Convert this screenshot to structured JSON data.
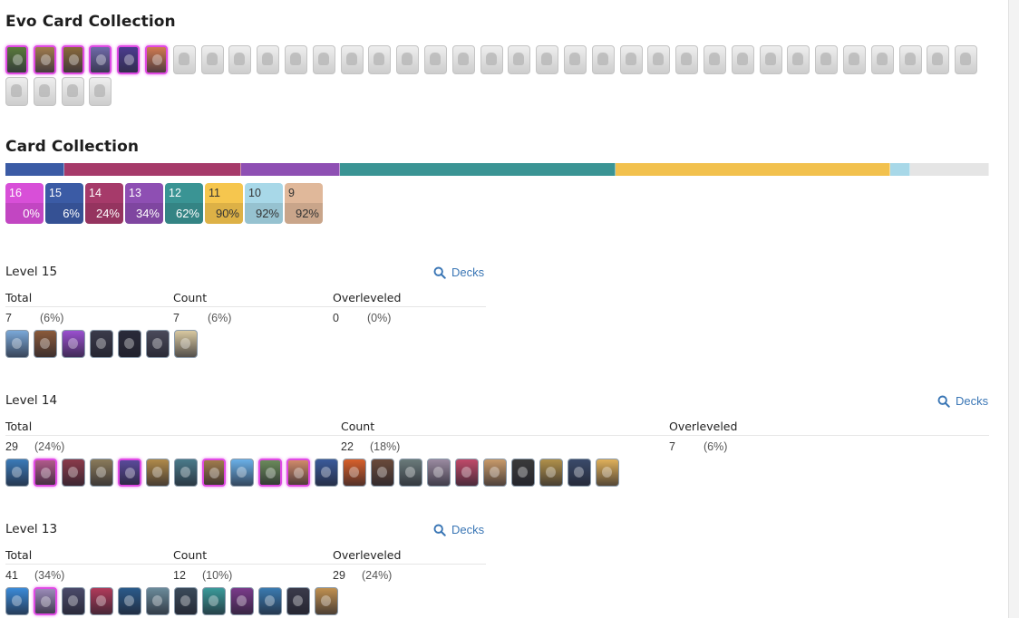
{
  "evo_section": {
    "title": "Evo Card Collection",
    "owned_cards": [
      {
        "icon": "evo-card-icon",
        "color": "#5a7a3a"
      },
      {
        "icon": "evo-card-icon",
        "color": "#a07b4c"
      },
      {
        "icon": "evo-card-icon",
        "color": "#8a6a3b"
      },
      {
        "icon": "evo-card-icon",
        "color": "#6f6aa8"
      },
      {
        "icon": "evo-card-icon",
        "color": "#4b3b8f"
      },
      {
        "icon": "evo-card-icon",
        "color": "#d07a50"
      }
    ],
    "locked_card_icon": "locked-card-icon",
    "locked_card_count": 33
  },
  "collection_section": {
    "title": "Card Collection",
    "segments": [
      {
        "color": "#3b5ba5",
        "share": 6
      },
      {
        "color": "#a63a6a",
        "share": 18
      },
      {
        "color": "#8e4fb3",
        "share": 10
      },
      {
        "color": "#3a9494",
        "share": 28
      },
      {
        "color": "#f2c14e",
        "share": 28
      },
      {
        "color": "#a8d8e8",
        "share": 2
      },
      {
        "color": "#e5e5e5",
        "share": 8
      }
    ],
    "badges": [
      {
        "level": "16",
        "pct": "0%",
        "color": "#d84fd8"
      },
      {
        "level": "15",
        "pct": "6%",
        "color": "#3b5ba5"
      },
      {
        "level": "14",
        "pct": "24%",
        "color": "#a63a6a"
      },
      {
        "level": "13",
        "pct": "34%",
        "color": "#8e4fb3"
      },
      {
        "level": "12",
        "pct": "62%",
        "color": "#3a9494"
      },
      {
        "level": "11",
        "pct": "90%",
        "color": "#f6c64e"
      },
      {
        "level": "10",
        "pct": "92%",
        "color": "#a8d8e8"
      },
      {
        "level": "9",
        "pct": "92%",
        "color": "#e0b89a"
      }
    ]
  },
  "levels": [
    {
      "title": "Level 15",
      "decks_label": "Decks",
      "headers": {
        "total": "Total",
        "count": "Count",
        "overleveled": "Overleveled"
      },
      "total": {
        "num": "7",
        "pct": "(6%)"
      },
      "count": {
        "num": "7",
        "pct": "(6%)"
      },
      "overleveled": {
        "num": "0",
        "pct": "(0%)"
      },
      "cards": [
        {
          "color": "#7aa8d8",
          "evo": false
        },
        {
          "color": "#8a5a3a",
          "evo": false
        },
        {
          "color": "#9a4fcf",
          "evo": false
        },
        {
          "color": "#3a3a4a",
          "evo": false
        },
        {
          "color": "#2a2a3a",
          "evo": false
        },
        {
          "color": "#4a4a5a",
          "evo": false
        },
        {
          "color": "#d9c9a0",
          "evo": false
        }
      ]
    },
    {
      "title": "Level 14",
      "decks_label": "Decks",
      "headers": {
        "total": "Total",
        "count": "Count",
        "overleveled": "Overleveled"
      },
      "total": {
        "num": "29",
        "pct": "(24%)"
      },
      "count": {
        "num": "22",
        "pct": "(18%)"
      },
      "overleveled": {
        "num": "7",
        "pct": "(6%)"
      },
      "cards": [
        {
          "color": "#3a7ab8",
          "evo": false
        },
        {
          "color": "#b05a8a",
          "evo": true
        },
        {
          "color": "#8a3a4a",
          "evo": false
        },
        {
          "color": "#8a7a5a",
          "evo": false
        },
        {
          "color": "#5a4a9a",
          "evo": true
        },
        {
          "color": "#b08a4a",
          "evo": false
        },
        {
          "color": "#4a7a8a",
          "evo": false
        },
        {
          "color": "#a07b4c",
          "evo": true
        },
        {
          "color": "#6ab0e8",
          "evo": false
        },
        {
          "color": "#6a8a5a",
          "evo": true
        },
        {
          "color": "#d08a6a",
          "evo": true
        },
        {
          "color": "#3a5a9a",
          "evo": false
        },
        {
          "color": "#d8602a",
          "evo": false
        },
        {
          "color": "#6a4a3a",
          "evo": false
        },
        {
          "color": "#6a7a7a",
          "evo": false
        },
        {
          "color": "#9a8aa0",
          "evo": false
        },
        {
          "color": "#c04a6a",
          "evo": false
        },
        {
          "color": "#c89a6a",
          "evo": false
        },
        {
          "color": "#3a3a3a",
          "evo": false
        },
        {
          "color": "#b0904a",
          "evo": false
        },
        {
          "color": "#3a4a6a",
          "evo": false
        },
        {
          "color": "#e0b05a",
          "evo": false
        }
      ]
    },
    {
      "title": "Level 13",
      "decks_label": "Decks",
      "headers": {
        "total": "Total",
        "count": "Count",
        "overleveled": "Overleveled"
      },
      "total": {
        "num": "41",
        "pct": "(34%)"
      },
      "count": {
        "num": "12",
        "pct": "(10%)"
      },
      "overleveled": {
        "num": "29",
        "pct": "(24%)"
      },
      "cards": [
        {
          "color": "#3a8ad8",
          "evo": false
        },
        {
          "color": "#9a8ab8",
          "evo": true
        },
        {
          "color": "#4a4a6a",
          "evo": false
        },
        {
          "color": "#b03a5a",
          "evo": false
        },
        {
          "color": "#2a5a8a",
          "evo": false
        },
        {
          "color": "#6a8a9a",
          "evo": false
        },
        {
          "color": "#3a4a5a",
          "evo": false
        },
        {
          "color": "#3a9a9a",
          "evo": false
        },
        {
          "color": "#7a3a8a",
          "evo": false
        },
        {
          "color": "#3a7ab0",
          "evo": false
        },
        {
          "color": "#3a3a4a",
          "evo": false
        },
        {
          "color": "#c09050",
          "evo": false
        }
      ]
    }
  ]
}
